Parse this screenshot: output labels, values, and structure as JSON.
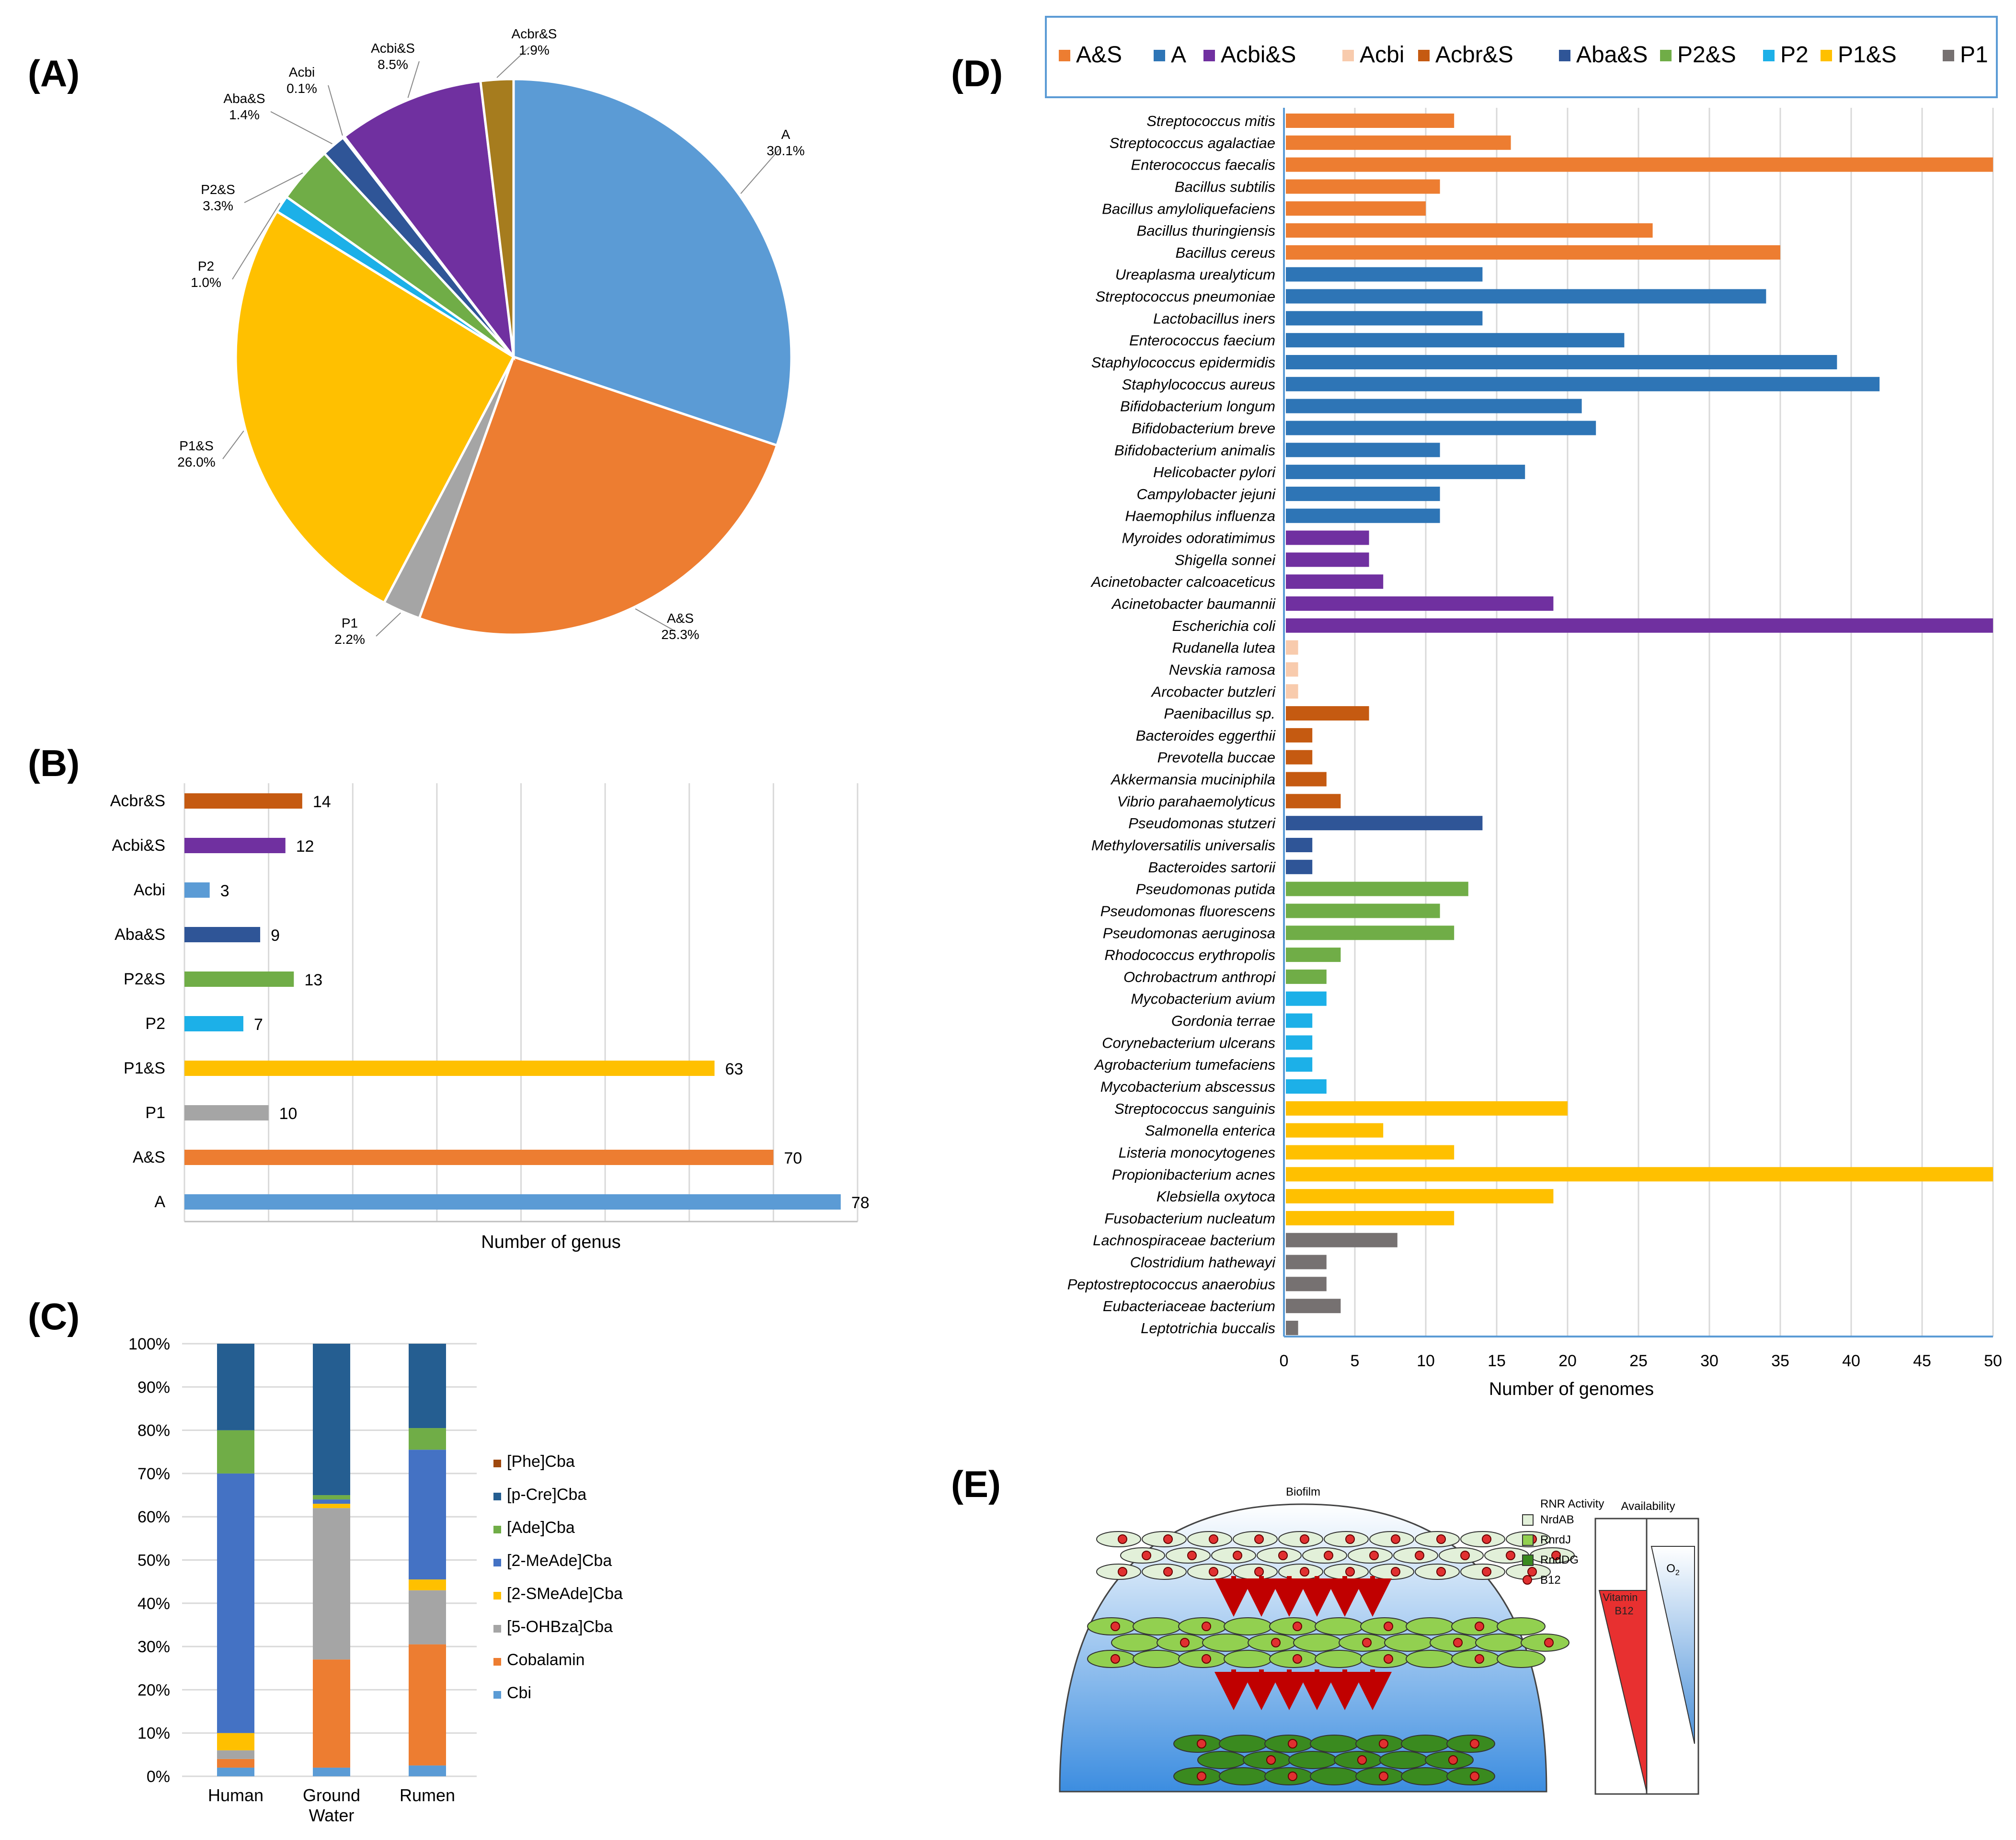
{
  "panels": {
    "A": "(A)",
    "B": "(B)",
    "C": "(C)",
    "D": "(D)",
    "E": "(E)"
  },
  "colors": {
    "A&S": "#ED7D31",
    "A": "#5B9BD5",
    "A_dark": "#2E75B6",
    "Acbi&S": "#7030A0",
    "Acbi": "#F8CBAD",
    "Acbr&S": "#C55A11",
    "Acbr&S_pie": "#A67C1E",
    "Aba&S": "#2F5597",
    "P2&S": "#70AD47",
    "P2": "#1CB0E8",
    "P1&S": "#FFC000",
    "P1": "#A5A5A5",
    "P1_D": "#767171"
  },
  "chart_data": [
    {
      "id": "A",
      "type": "pie",
      "slices": [
        {
          "label": "A",
          "pct": "30.1%",
          "value": 30.1,
          "color_key": "A"
        },
        {
          "label": "A&S",
          "pct": "25.3%",
          "value": 25.3,
          "color_key": "A&S"
        },
        {
          "label": "P1",
          "pct": "2.2%",
          "value": 2.2,
          "color_key": "P1"
        },
        {
          "label": "P1&S",
          "pct": "26.0%",
          "value": 26.0,
          "color_key": "P1&S"
        },
        {
          "label": "P2",
          "pct": "1.0%",
          "value": 1.0,
          "color_key": "P2"
        },
        {
          "label": "P2&S",
          "pct": "3.3%",
          "value": 3.3,
          "color_key": "P2&S"
        },
        {
          "label": "Aba&S",
          "pct": "1.4%",
          "value": 1.4,
          "color_key": "Aba&S"
        },
        {
          "label": "Acbi",
          "pct": "0.1%",
          "value": 0.1,
          "color_key": "Acbi"
        },
        {
          "label": "Acbi&S",
          "pct": "8.5%",
          "value": 8.5,
          "color_key": "Acbi&S"
        },
        {
          "label": "Acbr&S",
          "pct": "1.9%",
          "value": 1.9,
          "color_key": "Acbr&S_pie"
        }
      ]
    },
    {
      "id": "B",
      "type": "bar",
      "orientation": "horizontal",
      "xlabel": "Number of genus",
      "xlim": [
        0,
        80
      ],
      "categories": [
        "Acbr&S",
        "Acbi&S",
        "Acbi",
        "Aba&S",
        "P2&S",
        "P2",
        "P1&S",
        "P1",
        "A&S",
        "A"
      ],
      "values": [
        14,
        12,
        3,
        9,
        13,
        7,
        63,
        10,
        70,
        78
      ],
      "color_keys": [
        "Acbr&S",
        "Acbi&S",
        "A",
        "Aba&S",
        "P2&S",
        "P2",
        "P1&S",
        "P1",
        "A&S",
        "A"
      ]
    },
    {
      "id": "C",
      "type": "bar",
      "stacked": true,
      "categories": [
        "Human",
        "Ground Water",
        "Rumen"
      ],
      "yticks": [
        "0%",
        "10%",
        "20%",
        "30%",
        "40%",
        "50%",
        "60%",
        "70%",
        "80%",
        "90%",
        "100%"
      ],
      "ylim": [
        0,
        100
      ],
      "series": [
        {
          "name": "Cbi",
          "color": "#5B9BD5",
          "values": [
            2,
            2,
            2.5
          ]
        },
        {
          "name": "Cobalamin",
          "color": "#ED7D31",
          "values": [
            2,
            25,
            28
          ]
        },
        {
          "name": "[5-OHBza]Cba",
          "color": "#A5A5A5",
          "values": [
            2,
            35,
            12.5
          ]
        },
        {
          "name": "[2-SMeAde]Cba",
          "color": "#FFC000",
          "values": [
            4,
            1,
            2.5
          ]
        },
        {
          "name": "[2-MeAde]Cba",
          "color": "#4472C4",
          "values": [
            60,
            1,
            30
          ]
        },
        {
          "name": "[Ade]Cba",
          "color": "#70AD47",
          "values": [
            10,
            1,
            5
          ]
        },
        {
          "name": "[p-Cre]Cba",
          "color": "#255E91",
          "values": [
            20,
            35,
            19.5
          ]
        },
        {
          "name": "[Phe]Cba",
          "color": "#9E480E",
          "values": [
            0,
            0,
            0
          ]
        }
      ],
      "legend_order": [
        "[Phe]Cba",
        "[p-Cre]Cba",
        "[Ade]Cba",
        "[2-MeAde]Cba",
        "[2-SMeAde]Cba",
        "[5-OHBza]Cba",
        "Cobalamin",
        "Cbi"
      ]
    },
    {
      "id": "D",
      "type": "bar",
      "orientation": "horizontal",
      "xlabel": "Number of genomes",
      "xlim": [
        0,
        50
      ],
      "xticks": [
        "0",
        "5",
        "10",
        "15",
        "20",
        "25",
        "30",
        "35",
        "40",
        "45",
        "50"
      ],
      "legend": [
        "A&S",
        "A",
        "Acbi&S",
        "Acbi",
        "Acbr&S",
        "Aba&S",
        "P2&S",
        "P2",
        "P1&S",
        "P1"
      ],
      "legend_color_keys": [
        "A&S",
        "A_dark",
        "Acbi&S",
        "Acbi",
        "Acbr&S",
        "Aba&S",
        "P2&S",
        "P2",
        "P1&S",
        "P1_D"
      ],
      "bars": [
        {
          "name": "Streptococcus mitis",
          "value": 12,
          "group": "A&S"
        },
        {
          "name": "Streptococcus agalactiae",
          "value": 16,
          "group": "A&S"
        },
        {
          "name": "Enterococcus faecalis",
          "value": 50,
          "group": "A&S"
        },
        {
          "name": "Bacillus subtilis",
          "value": 11,
          "group": "A&S"
        },
        {
          "name": "Bacillus amyloliquefaciens",
          "value": 10,
          "group": "A&S"
        },
        {
          "name": "Bacillus thuringiensis",
          "value": 26,
          "group": "A&S"
        },
        {
          "name": "Bacillus cereus",
          "value": 35,
          "group": "A&S"
        },
        {
          "name": "Ureaplasma urealyticum",
          "value": 14,
          "group": "A_dark"
        },
        {
          "name": "Streptococcus pneumoniae",
          "value": 34,
          "group": "A_dark"
        },
        {
          "name": "Lactobacillus iners",
          "value": 14,
          "group": "A_dark"
        },
        {
          "name": "Enterococcus faecium",
          "value": 24,
          "group": "A_dark"
        },
        {
          "name": "Staphylococcus epidermidis",
          "value": 39,
          "group": "A_dark"
        },
        {
          "name": "Staphylococcus aureus",
          "value": 42,
          "group": "A_dark"
        },
        {
          "name": "Bifidobacterium longum",
          "value": 21,
          "group": "A_dark"
        },
        {
          "name": "Bifidobacterium breve",
          "value": 22,
          "group": "A_dark"
        },
        {
          "name": "Bifidobacterium animalis",
          "value": 11,
          "group": "A_dark"
        },
        {
          "name": "Helicobacter pylori",
          "value": 17,
          "group": "A_dark"
        },
        {
          "name": "Campylobacter jejuni",
          "value": 11,
          "group": "A_dark"
        },
        {
          "name": "Haemophilus influenza",
          "value": 11,
          "group": "A_dark"
        },
        {
          "name": "Myroides odoratimimus",
          "value": 6,
          "group": "Acbi&S"
        },
        {
          "name": "Shigella sonnei",
          "value": 6,
          "group": "Acbi&S"
        },
        {
          "name": "Acinetobacter calcoaceticus",
          "value": 7,
          "group": "Acbi&S"
        },
        {
          "name": "Acinetobacter baumannii",
          "value": 19,
          "group": "Acbi&S"
        },
        {
          "name": "Escherichia coli",
          "value": 50,
          "group": "Acbi&S"
        },
        {
          "name": "Rudanella lutea",
          "value": 1,
          "group": "Acbi"
        },
        {
          "name": "Nevskia ramosa",
          "value": 1,
          "group": "Acbi"
        },
        {
          "name": "Arcobacter butzleri",
          "value": 1,
          "group": "Acbi"
        },
        {
          "name": "Paenibacillus sp.",
          "value": 6,
          "group": "Acbr&S"
        },
        {
          "name": "Bacteroides eggerthii",
          "value": 2,
          "group": "Acbr&S"
        },
        {
          "name": "Prevotella buccae",
          "value": 2,
          "group": "Acbr&S"
        },
        {
          "name": "Akkermansia muciniphila",
          "value": 3,
          "group": "Acbr&S"
        },
        {
          "name": "Vibrio parahaemolyticus",
          "value": 4,
          "group": "Acbr&S"
        },
        {
          "name": "Pseudomonas stutzeri",
          "value": 14,
          "group": "Aba&S"
        },
        {
          "name": "Methyloversatilis universalis",
          "value": 2,
          "group": "Aba&S"
        },
        {
          "name": "Bacteroides sartorii",
          "value": 2,
          "group": "Aba&S"
        },
        {
          "name": "Pseudomonas putida",
          "value": 13,
          "group": "P2&S"
        },
        {
          "name": "Pseudomonas fluorescens",
          "value": 11,
          "group": "P2&S"
        },
        {
          "name": "Pseudomonas aeruginosa",
          "value": 12,
          "group": "P2&S"
        },
        {
          "name": "Rhodococcus erythropolis",
          "value": 4,
          "group": "P2&S"
        },
        {
          "name": "Ochrobactrum anthropi",
          "value": 3,
          "group": "P2&S"
        },
        {
          "name": "Mycobacterium avium",
          "value": 3,
          "group": "P2"
        },
        {
          "name": "Gordonia terrae",
          "value": 2,
          "group": "P2"
        },
        {
          "name": "Corynebacterium ulcerans",
          "value": 2,
          "group": "P2"
        },
        {
          "name": "Agrobacterium tumefaciens",
          "value": 2,
          "group": "P2"
        },
        {
          "name": "Mycobacterium abscessus",
          "value": 3,
          "group": "P2"
        },
        {
          "name": "Streptococcus sanguinis",
          "value": 20,
          "group": "P1&S"
        },
        {
          "name": "Salmonella enterica",
          "value": 7,
          "group": "P1&S"
        },
        {
          "name": "Listeria monocytogenes",
          "value": 12,
          "group": "P1&S"
        },
        {
          "name": "Propionibacterium acnes",
          "value": 50,
          "group": "P1&S"
        },
        {
          "name": "Klebsiella oxytoca",
          "value": 19,
          "group": "P1&S"
        },
        {
          "name": "Fusobacterium nucleatum",
          "value": 12,
          "group": "P1&S"
        },
        {
          "name": "Lachnospiraceae bacterium",
          "value": 8,
          "group": "P1_D"
        },
        {
          "name": "Clostridium hathewayi",
          "value": 3,
          "group": "P1_D"
        },
        {
          "name": "Peptostreptococcus anaerobius",
          "value": 3,
          "group": "P1_D"
        },
        {
          "name": "Eubacteriaceae bacterium",
          "value": 4,
          "group": "P1_D"
        },
        {
          "name": "Leptotrichia buccalis",
          "value": 1,
          "group": "P1_D"
        }
      ]
    }
  ],
  "diagram_E": {
    "biofilm_label": "Biofilm",
    "rnr_title": "RNR Activity",
    "legend": [
      {
        "label": "NrdAB",
        "color": "#E2F0D9"
      },
      {
        "label": "RnrdJ",
        "color": "#92D050"
      },
      {
        "label": "RndDG",
        "color": "#3A8A1F"
      },
      {
        "label": "B12",
        "color": "#E03030"
      }
    ],
    "availability_title": "Availability",
    "vitamin_label_1": "Vitamin",
    "vitamin_label_2": "B12",
    "o2_label": "O",
    "o2_sub": "2"
  }
}
